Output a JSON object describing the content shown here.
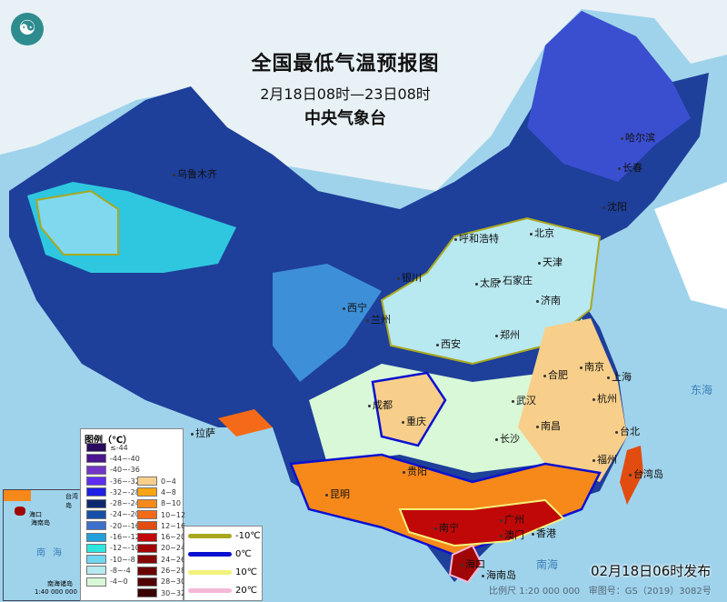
{
  "header": {
    "title": "全国最低气温预报图",
    "period": "2月18日08时—23日08时",
    "issuer": "中央气象台"
  },
  "cities": [
    {
      "name": "乌鲁木齐"
    },
    {
      "name": "哈尔滨"
    },
    {
      "name": "长春"
    },
    {
      "name": "沈阳"
    },
    {
      "name": "北京"
    },
    {
      "name": "天津"
    },
    {
      "name": "呼和浩特"
    },
    {
      "name": "石家庄"
    },
    {
      "name": "太原"
    },
    {
      "name": "银川"
    },
    {
      "name": "济南"
    },
    {
      "name": "西宁"
    },
    {
      "name": "兰州"
    },
    {
      "name": "郑州"
    },
    {
      "name": "西安"
    },
    {
      "name": "合肥"
    },
    {
      "name": "南京"
    },
    {
      "name": "上海"
    },
    {
      "name": "武汉"
    },
    {
      "name": "杭州"
    },
    {
      "name": "成都"
    },
    {
      "name": "重庆"
    },
    {
      "name": "长沙"
    },
    {
      "name": "南昌"
    },
    {
      "name": "拉萨"
    },
    {
      "name": "福州"
    },
    {
      "name": "台北"
    },
    {
      "name": "贵阳"
    },
    {
      "name": "昆明"
    },
    {
      "name": "南宁"
    },
    {
      "name": "广州"
    },
    {
      "name": "澳门"
    },
    {
      "name": "香港"
    },
    {
      "name": "海口"
    },
    {
      "name": "台湾岛"
    },
    {
      "name": "海南岛"
    }
  ],
  "seas": {
    "south_sea": "南海",
    "east_sea": "东海",
    "south_sea_islands": "南海诸岛"
  },
  "legend": {
    "title": "图例（℃）",
    "cold": [
      {
        "label": "≤-44",
        "color": "#2a0a5e"
      },
      {
        "label": "-44~-40",
        "color": "#4b1490"
      },
      {
        "label": "-40~-36",
        "color": "#7235c8"
      },
      {
        "label": "-36~-32",
        "color": "#5e2df0"
      },
      {
        "label": "-32~-28",
        "color": "#1f1fe6"
      },
      {
        "label": "-28~-24",
        "color": "#0e2870"
      },
      {
        "label": "-24~-20",
        "color": "#1450a8"
      },
      {
        "label": "-20~-16",
        "color": "#3d6fcc"
      },
      {
        "label": "-16~-12",
        "color": "#22a0dc"
      },
      {
        "label": "-12~-10",
        "color": "#2ee6e0"
      },
      {
        "label": "-10~-8",
        "color": "#6fd6f2"
      },
      {
        "label": "-8~-4",
        "color": "#b8e8f0"
      },
      {
        "label": "-4~0",
        "color": "#d8f8d8"
      }
    ],
    "warm": [
      {
        "label": "0~4",
        "color": "#f8cf8a"
      },
      {
        "label": "4~8",
        "color": "#f9a412"
      },
      {
        "label": "8~10",
        "color": "#f7891a"
      },
      {
        "label": "10~12",
        "color": "#f46a18"
      },
      {
        "label": "12~16",
        "color": "#e24c10"
      },
      {
        "label": "16~20",
        "color": "#c00808"
      },
      {
        "label": "20~24",
        "color": "#a00606"
      },
      {
        "label": "24~26",
        "color": "#860606"
      },
      {
        "label": "26~28",
        "color": "#6a0404"
      },
      {
        "label": "28~30",
        "color": "#520404"
      },
      {
        "label": "30~32",
        "color": "#3a0202"
      }
    ],
    "isotherms": [
      {
        "label": "-10℃",
        "color": "#a8a820"
      },
      {
        "label": "0℃",
        "color": "#0a10d0"
      },
      {
        "label": "10℃",
        "color": "#f2f27a"
      },
      {
        "label": "20℃",
        "color": "#f4b8d8"
      }
    ]
  },
  "inset": {
    "haikou": "海口",
    "hainan": "海南岛",
    "taiwan": "台湾岛",
    "sea": "南海",
    "islands": "南海诸岛",
    "scale": "1:40 000 000"
  },
  "footer": {
    "issue_time": "02月18日06时发布",
    "scale": "比例尺 1:20 000 000",
    "map_no": "审图号：GS（2019）3082号"
  }
}
